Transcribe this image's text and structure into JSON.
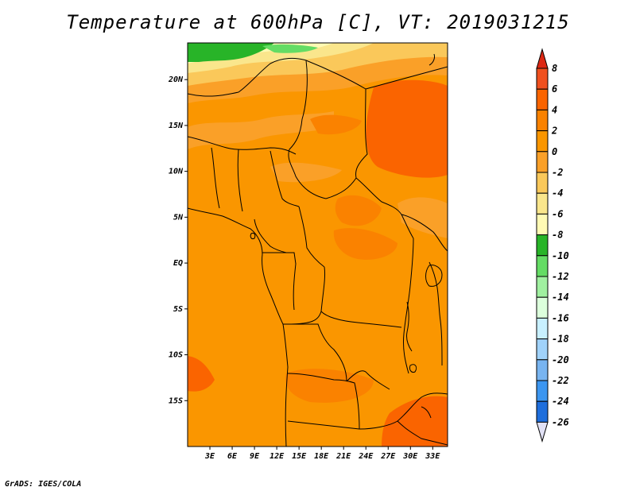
{
  "title": "Temperature at 600hPa [C], VT: 2019031215",
  "credit": "GrADS: IGES/COLA",
  "map": {
    "lon_range": [
      0,
      35
    ],
    "lat_range": [
      -20,
      24
    ],
    "lat_ticks": [
      {
        "value": 20,
        "label": "20N"
      },
      {
        "value": 15,
        "label": "15N"
      },
      {
        "value": 10,
        "label": "10N"
      },
      {
        "value": 5,
        "label": "5N"
      },
      {
        "value": 0,
        "label": "EQ"
      },
      {
        "value": -5,
        "label": "5S"
      },
      {
        "value": -10,
        "label": "10S"
      },
      {
        "value": -15,
        "label": "15S"
      }
    ],
    "lon_ticks": [
      {
        "value": 3,
        "label": "3E"
      },
      {
        "value": 6,
        "label": "6E"
      },
      {
        "value": 9,
        "label": "9E"
      },
      {
        "value": 12,
        "label": "12E"
      },
      {
        "value": 15,
        "label": "15E"
      },
      {
        "value": 18,
        "label": "18E"
      },
      {
        "value": 21,
        "label": "21E"
      },
      {
        "value": 24,
        "label": "24E"
      },
      {
        "value": 27,
        "label": "27E"
      },
      {
        "value": 30,
        "label": "30E"
      },
      {
        "value": 33,
        "label": "33E"
      }
    ]
  },
  "colorbar": {
    "levels": [
      "8",
      "6",
      "4",
      "2",
      "0",
      "-2",
      "-4",
      "-6",
      "-8",
      "-10",
      "-12",
      "-14",
      "-16",
      "-18",
      "-20",
      "-22",
      "-24",
      "-26"
    ],
    "colors": [
      "#f0501e",
      "#fa6400",
      "#fa8200",
      "#fa9600",
      "#faa028",
      "#fac85a",
      "#fae68c",
      "#fffab4",
      "#28b428",
      "#64dc64",
      "#a0f0a0",
      "#dcffdc",
      "#c8f0ff",
      "#a0d2fa",
      "#78b4f0",
      "#3c96f0",
      "#1e6edc",
      "#1450b4",
      "#0a2882",
      "#101058"
    ],
    "top_color": "#dc2814",
    "bottom_color": "#e1e1f5"
  },
  "palette": {
    "base": "#fa9600",
    "warm": "#fa8200",
    "hot": "#fa6400",
    "cool": "#faa028",
    "pale": "#fac85a",
    "paler": "#fae68c",
    "green": "#28b428",
    "lightgreen": "#64dc64"
  }
}
